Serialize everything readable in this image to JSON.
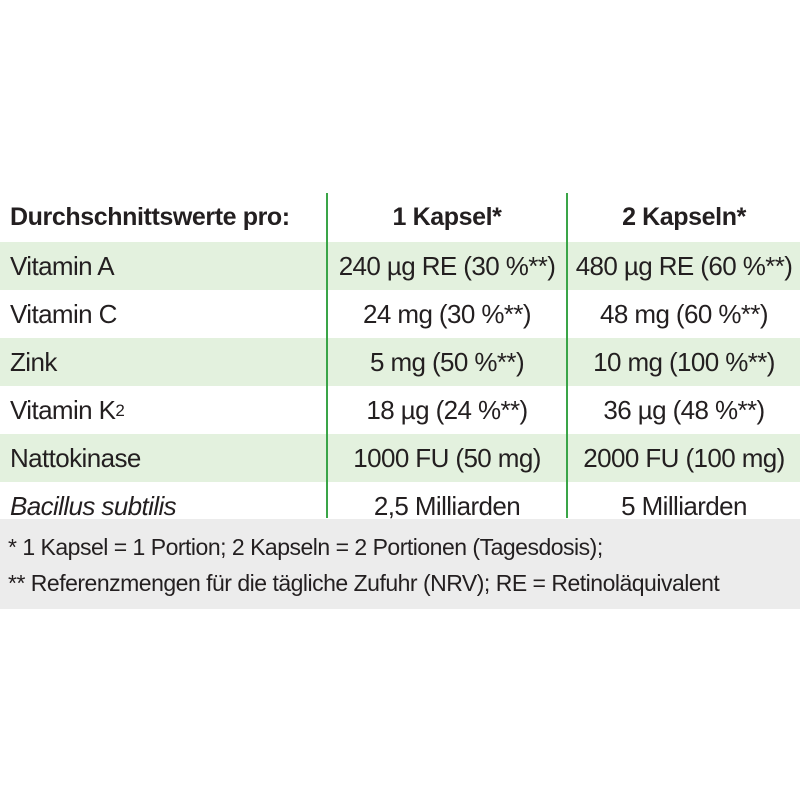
{
  "table": {
    "header": {
      "label": "Durchschnittswerte pro:",
      "col1": "1 Kapsel*",
      "col2": "2 Kapseln*"
    },
    "rows": [
      {
        "name": "Vitamin A",
        "col1": "240 µg RE (30 %**)",
        "col2": "480 µg RE (60 %**)",
        "shaded": true
      },
      {
        "name": "Vitamin C",
        "col1": "24 mg (30 %**)",
        "col2": "48 mg (60 %**)",
        "shaded": false
      },
      {
        "name": "Zink",
        "col1": "5 mg (50 %**)",
        "col2": "10 mg (100 %**)",
        "shaded": true
      },
      {
        "name": "Vitamin K",
        "name_sub": "2",
        "col1": "18 µg (24 %**)",
        "col2": "36 µg (48 %**)",
        "shaded": false
      },
      {
        "name": "Nattokinase",
        "col1": "1000 FU (50 mg)",
        "col2": "2000 FU (100 mg)",
        "shaded": true
      },
      {
        "name": "Bacillus subtilis",
        "col1": "2,5 Milliarden",
        "col2": "5 Milliarden",
        "shaded": false
      }
    ]
  },
  "footnotes": [
    "* 1 Kapsel = 1 Portion; 2 Kapseln = 2 Portionen (Tagesdosis);",
    "** Referenzmengen für die tägliche Zufuhr (NRV); RE = Retinoläquivalent"
  ],
  "colors": {
    "divider_green": "#3aa548",
    "row_shade": "#e3f1de",
    "footnote_bg": "#ececec",
    "text": "#231f20"
  }
}
